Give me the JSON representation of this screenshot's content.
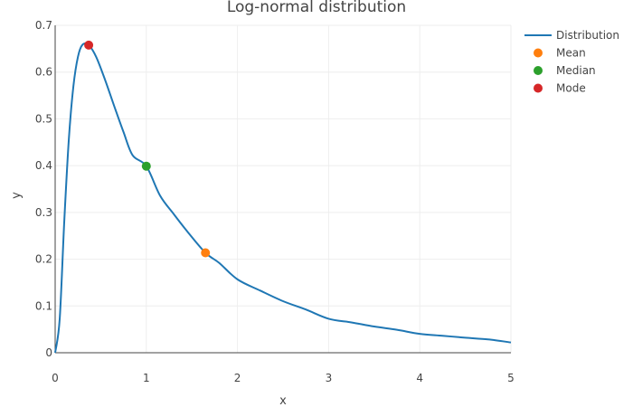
{
  "chart_data": {
    "type": "line",
    "title": "Log-normal distribution",
    "xlabel": "x",
    "ylabel": "y",
    "xlim": [
      0,
      5
    ],
    "ylim": [
      0,
      0.7
    ],
    "x_ticks": [
      "0",
      "1",
      "2",
      "3",
      "4",
      "5"
    ],
    "y_ticks": [
      "0",
      "0.1",
      "0.2",
      "0.3",
      "0.4",
      "0.5",
      "0.6",
      "0.7"
    ],
    "grid": true,
    "legend_position": "top-right",
    "series": [
      {
        "name": "Distribution",
        "type": "line",
        "color": "#1f77b4",
        "x": [
          0.0,
          0.05,
          0.1,
          0.15,
          0.2,
          0.25,
          0.3,
          0.368,
          0.45,
          0.55,
          0.65,
          0.75,
          0.85,
          1.0,
          1.15,
          1.3,
          1.45,
          1.649,
          1.8,
          2.0,
          2.25,
          2.5,
          2.75,
          3.0,
          3.25,
          3.5,
          3.75,
          4.0,
          4.25,
          4.5,
          4.75,
          5.0
        ],
        "y": [
          0.0,
          0.0727,
          0.2815,
          0.4563,
          0.5697,
          0.6327,
          0.6585,
          0.6577,
          0.6325,
          0.5821,
          0.5261,
          0.4718,
          0.4221,
          0.3989,
          0.3363,
          0.2967,
          0.2592,
          0.2137,
          0.192,
          0.1569,
          0.1328,
          0.1102,
          0.0924,
          0.0727,
          0.0648,
          0.056,
          0.049,
          0.0404,
          0.0363,
          0.0321,
          0.0285,
          0.022
        ]
      },
      {
        "name": "Mean",
        "type": "marker",
        "color": "#ff7f0e",
        "x": [
          1.649
        ],
        "y": [
          0.2137
        ]
      },
      {
        "name": "Median",
        "type": "marker",
        "color": "#2ca02c",
        "x": [
          1.0
        ],
        "y": [
          0.3989
        ]
      },
      {
        "name": "Mode",
        "type": "marker",
        "color": "#d62728",
        "x": [
          0.368
        ],
        "y": [
          0.6577
        ]
      }
    ]
  }
}
